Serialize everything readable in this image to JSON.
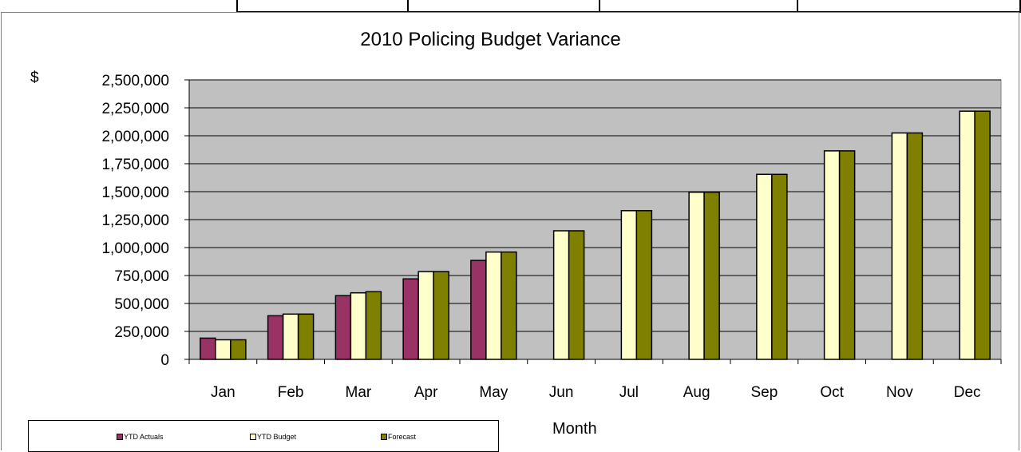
{
  "chart_data": {
    "type": "bar",
    "title": "2010 Policing Budget Variance",
    "ylabel": "$",
    "xlabel": "Month",
    "categories": [
      "Jan",
      "Feb",
      "Mar",
      "Apr",
      "May",
      "Jun",
      "Jul",
      "Aug",
      "Sep",
      "Oct",
      "Nov",
      "Dec"
    ],
    "ylim": [
      0,
      2500000
    ],
    "yticks": [
      0,
      250000,
      500000,
      750000,
      1000000,
      1250000,
      1500000,
      1750000,
      2000000,
      2250000,
      2500000
    ],
    "ytick_labels": [
      "0",
      "250,000",
      "500,000",
      "750,000",
      "1,000,000",
      "1,250,000",
      "1,500,000",
      "1,750,000",
      "2,000,000",
      "2,250,000",
      "2,500,000"
    ],
    "grid": true,
    "legend_position": "bottom-left",
    "plot_background": "#c0c0c0",
    "series": [
      {
        "name": "YTD Actuals",
        "color": "#993366",
        "values": [
          190000,
          390000,
          570000,
          720000,
          885000,
          null,
          null,
          null,
          null,
          null,
          null,
          null
        ]
      },
      {
        "name": "YTD Budget",
        "color": "#ffffcc",
        "values": [
          175000,
          405000,
          595000,
          785000,
          960000,
          1150000,
          1330000,
          1495000,
          1655000,
          1865000,
          2025000,
          2220000
        ]
      },
      {
        "name": "Forecast",
        "color": "#808000",
        "values": [
          175000,
          405000,
          605000,
          785000,
          960000,
          1150000,
          1330000,
          1495000,
          1655000,
          1865000,
          2025000,
          2220000
        ]
      }
    ]
  }
}
